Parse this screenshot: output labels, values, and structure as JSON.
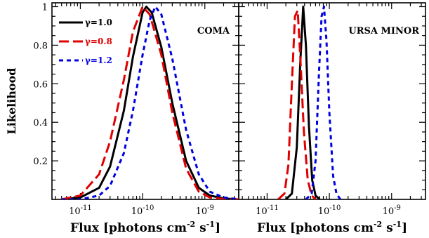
{
  "chart_data": [
    {
      "type": "line",
      "title": "COMA",
      "xlabel": "Flux [photons cm",
      "xlabel_exp1": "-2",
      "xlabel_mid": " s",
      "xlabel_exp2": "-1",
      "xlabel_end": "]",
      "ylabel": "Likelihood",
      "xscale": "log",
      "xlim": [
        3.5e-12,
        3.5e-09
      ],
      "ylim": [
        0,
        1.02
      ],
      "x_ticks": [
        {
          "value": 1e-11,
          "base": "10",
          "exp": "-11"
        },
        {
          "value": 1e-10,
          "base": "10",
          "exp": "-10"
        },
        {
          "value": 1e-09,
          "base": "10",
          "exp": "-9"
        }
      ],
      "y_ticks": [
        {
          "value": 0.2,
          "label": "0.2"
        },
        {
          "value": 0.4,
          "label": "0.4"
        },
        {
          "value": 0.6,
          "label": "0.6"
        },
        {
          "value": 0.8,
          "label": "0.8"
        },
        {
          "value": 1.0,
          "label": "1"
        }
      ],
      "legend": {
        "placement": "top-left",
        "entries": [
          {
            "gamma": "γ",
            "text": "=1.0",
            "color": "#000000",
            "style": "solid"
          },
          {
            "gamma": "γ",
            "text": "=0.8",
            "color": "#e00000",
            "style": "long-dash"
          },
          {
            "gamma": "γ",
            "text": "=1.2",
            "color": "#0000e0",
            "style": "short-dash"
          }
        ]
      },
      "series": [
        {
          "gamma": "1.0",
          "color": "#000000",
          "style": "solid",
          "x": [
            5e-12,
            1e-11,
            2e-11,
            3e-11,
            5e-11,
            7e-11,
            1e-10,
            1.15e-10,
            1.4e-10,
            2e-10,
            3e-10,
            5e-10,
            8e-10,
            1.2e-09,
            2e-09,
            3.5e-09
          ],
          "y": [
            0.0,
            0.01,
            0.06,
            0.17,
            0.46,
            0.74,
            0.97,
            1.0,
            0.97,
            0.79,
            0.5,
            0.2,
            0.06,
            0.02,
            0.005,
            0.0
          ]
        },
        {
          "gamma": "0.8",
          "color": "#e00000",
          "style": "long-dash",
          "x": [
            5e-12,
            1e-11,
            2e-11,
            3e-11,
            5e-11,
            7e-11,
            1e-10,
            1.3e-10,
            2e-10,
            3e-10,
            5e-10,
            8e-10,
            1.2e-09,
            2e-09,
            3.5e-09
          ],
          "y": [
            0.0,
            0.02,
            0.13,
            0.3,
            0.62,
            0.87,
            1.0,
            0.96,
            0.75,
            0.45,
            0.16,
            0.04,
            0.01,
            0.002,
            0.0
          ]
        },
        {
          "gamma": "1.2",
          "color": "#0000e0",
          "style": "short-dash",
          "x": [
            5e-12,
            1e-11,
            2e-11,
            3e-11,
            5e-11,
            7e-11,
            1e-10,
            1.3e-10,
            1.6e-10,
            2e-10,
            3e-10,
            5e-10,
            8e-10,
            1.2e-09,
            2e-09,
            3.5e-09
          ],
          "y": [
            0.0,
            0.0,
            0.02,
            0.07,
            0.24,
            0.46,
            0.75,
            0.93,
            1.0,
            0.96,
            0.73,
            0.36,
            0.13,
            0.04,
            0.01,
            0.0
          ]
        }
      ]
    },
    {
      "type": "line",
      "title": "URSA MINOR",
      "xlabel": "Flux [photons cm",
      "xlabel_exp1": "-2",
      "xlabel_mid": " s",
      "xlabel_exp2": "-1",
      "xlabel_end": "]",
      "xscale": "log",
      "xlim": [
        3.5e-12,
        3.5e-09
      ],
      "ylim": [
        0,
        1.02
      ],
      "x_ticks": [
        {
          "value": 1e-11,
          "base": "10",
          "exp": "-11"
        },
        {
          "value": 1e-10,
          "base": "10",
          "exp": "-10"
        },
        {
          "value": 1e-09,
          "base": "10",
          "exp": "-9"
        }
      ],
      "series": [
        {
          "gamma": "1.0",
          "color": "#000000",
          "style": "solid",
          "x": [
            2e-11,
            2.5e-11,
            3e-11,
            3.4e-11,
            3.8e-11,
            4.2e-11,
            4.7e-11,
            5.3e-11,
            6e-11,
            7e-11
          ],
          "y": [
            0.0,
            0.03,
            0.27,
            0.7,
            1.0,
            0.8,
            0.38,
            0.1,
            0.02,
            0.0
          ]
        },
        {
          "gamma": "0.8",
          "color": "#e00000",
          "style": "long-dash",
          "x": [
            1.5e-11,
            1.9e-11,
            2.2e-11,
            2.5e-11,
            2.8e-11,
            3.1e-11,
            3.4e-11,
            3.9e-11,
            4.5e-11,
            5.2e-11,
            6e-11
          ],
          "y": [
            0.0,
            0.03,
            0.18,
            0.6,
            0.95,
            0.98,
            0.75,
            0.35,
            0.1,
            0.02,
            0.0
          ]
        },
        {
          "gamma": "1.2",
          "color": "#0000e0",
          "style": "short-dash",
          "x": [
            4.2e-11,
            5.2e-11,
            6e-11,
            6.8e-11,
            7.5e-11,
            8.2e-11,
            9e-11,
            1e-10,
            1.15e-10,
            1.3e-10,
            1.5e-10
          ],
          "y": [
            0.0,
            0.03,
            0.2,
            0.65,
            0.95,
            1.0,
            0.82,
            0.45,
            0.12,
            0.03,
            0.0
          ]
        }
      ]
    }
  ]
}
